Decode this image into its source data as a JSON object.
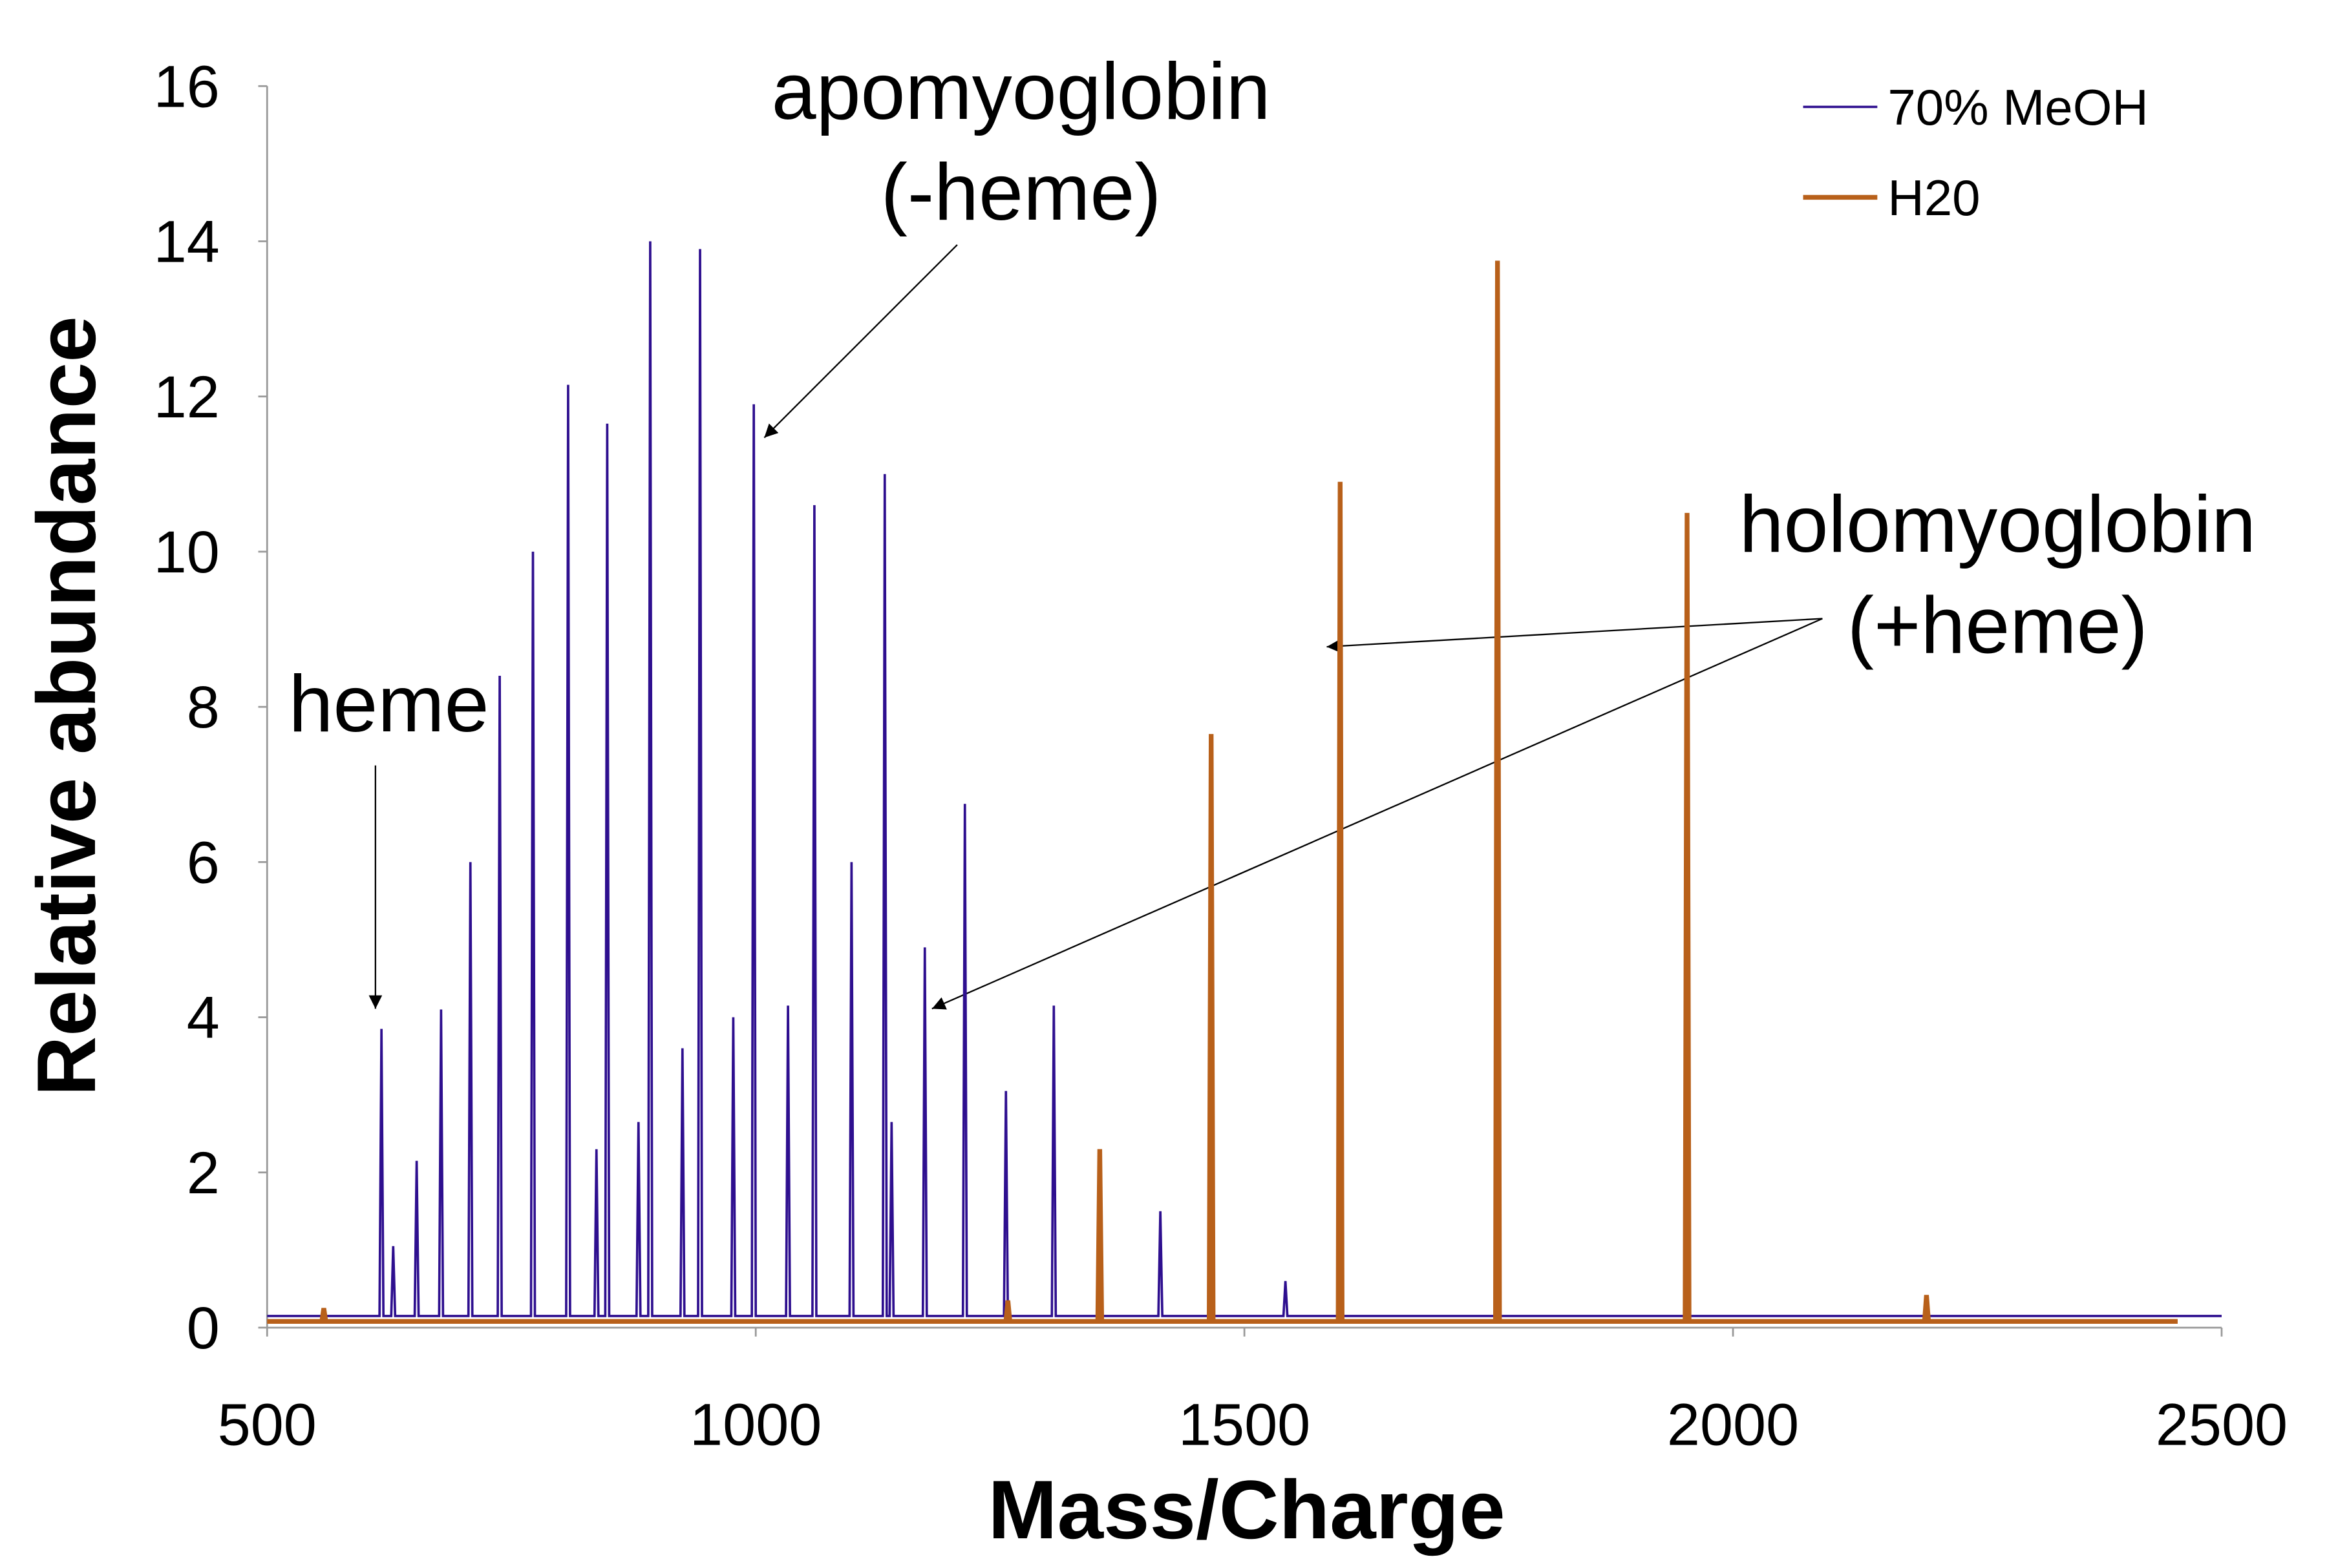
{
  "chart_data": {
    "type": "line",
    "x_label": "Mass/Charge",
    "y_label": "Relative abundance",
    "xlim": [
      500,
      2500
    ],
    "xticks": [
      500,
      1000,
      1500,
      2000,
      2500
    ],
    "ylim": [
      0,
      16
    ],
    "yticks": [
      0,
      2,
      4,
      6,
      8,
      10,
      12,
      14,
      16
    ],
    "legend_position": "upper right",
    "series": [
      {
        "name": "70% MeOH",
        "color": "#2e0f8f",
        "x": [
          500,
          615,
          617,
          619,
          627,
          629,
          631,
          651,
          653,
          655,
          676,
          678,
          680,
          706,
          708,
          710,
          736,
          738,
          740,
          770,
          772,
          774,
          806,
          808,
          810,
          835,
          837,
          839,
          846,
          848,
          850,
          878,
          880,
          882,
          890,
          892,
          894,
          923,
          925,
          927,
          941,
          943,
          945,
          975,
          977,
          979,
          996,
          998,
          1000,
          1031,
          1033,
          1035,
          1058,
          1060,
          1062,
          1096,
          1098,
          1100,
          1130,
          1132,
          1134,
          1137,
          1139,
          1141,
          1171,
          1173,
          1175,
          1212,
          1214,
          1216,
          1254,
          1256,
          1258,
          1303,
          1305,
          1307,
          1412,
          1414,
          1416,
          1540,
          1542,
          1544,
          2500
        ],
        "values": [
          0.15,
          0.15,
          3.85,
          0.15,
          0.15,
          1.05,
          0.15,
          0.15,
          2.15,
          0.15,
          0.15,
          4.1,
          0.15,
          0.15,
          6.0,
          0.15,
          0.15,
          8.4,
          0.15,
          0.15,
          10.0,
          0.15,
          0.15,
          12.15,
          0.15,
          0.15,
          2.3,
          0.15,
          0.15,
          11.65,
          0.15,
          0.15,
          2.65,
          0.15,
          0.15,
          14.0,
          0.15,
          0.15,
          3.6,
          0.15,
          0.15,
          13.9,
          0.15,
          0.15,
          4.0,
          0.15,
          0.15,
          11.9,
          0.15,
          0.15,
          4.15,
          0.15,
          0.15,
          10.6,
          0.15,
          0.15,
          6.0,
          0.15,
          0.15,
          11.0,
          0.15,
          0.15,
          2.65,
          0.15,
          0.15,
          4.9,
          0.15,
          0.15,
          6.75,
          0.15,
          0.15,
          3.05,
          0.15,
          0.15,
          4.15,
          0.15,
          0.15,
          1.5,
          0.15,
          0.15,
          0.6,
          0.15,
          0.15
        ]
      },
      {
        "name": "H20",
        "color": "#b8601a",
        "x": [
          500,
          556,
          558,
          560,
          1256,
          1258,
          1260,
          1350,
          1352,
          1354,
          1464,
          1466,
          1468,
          1596,
          1598,
          1600,
          1757,
          1759,
          1761,
          1951,
          1953,
          1955,
          2196,
          2198,
          2200,
          2455
        ],
        "values": [
          0.08,
          0.08,
          0.25,
          0.08,
          0.08,
          0.35,
          0.08,
          0.08,
          2.3,
          0.08,
          0.08,
          7.65,
          0.08,
          0.08,
          10.9,
          0.08,
          0.08,
          13.75,
          0.08,
          0.08,
          10.5,
          0.08,
          0.08,
          0.42,
          0.08,
          0.08
        ]
      }
    ],
    "annotations": [
      {
        "lines": [
          "apomyoglobin",
          "(-heme)"
        ]
      },
      {
        "lines": [
          "heme"
        ]
      },
      {
        "lines": [
          "holomyoglobin",
          "(+heme)"
        ]
      }
    ]
  }
}
